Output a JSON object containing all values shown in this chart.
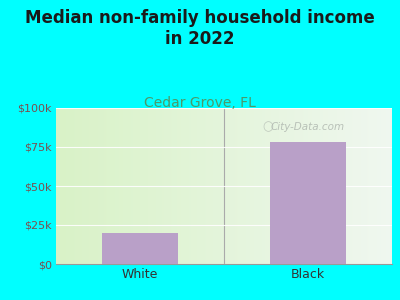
{
  "title": "Median non-family household income\nin 2022",
  "subtitle": "Cedar Grove, FL",
  "categories": [
    "White",
    "Black"
  ],
  "values": [
    20000,
    78000
  ],
  "bar_color": "#b9a0c8",
  "background_color": "#00FFFF",
  "title_fontsize": 12,
  "subtitle_fontsize": 10,
  "subtitle_color": "#4a9a6a",
  "title_color": "#1a1a1a",
  "ytick_color": "#7a5050",
  "xtick_color": "#333333",
  "ylim": [
    0,
    100000
  ],
  "yticks": [
    0,
    25000,
    50000,
    75000,
    100000
  ],
  "ytick_labels": [
    "$0",
    "$25k",
    "$50k",
    "$75k",
    "$100k"
  ],
  "watermark": "City-Data.com",
  "watermark_color": "#b0b8b0"
}
